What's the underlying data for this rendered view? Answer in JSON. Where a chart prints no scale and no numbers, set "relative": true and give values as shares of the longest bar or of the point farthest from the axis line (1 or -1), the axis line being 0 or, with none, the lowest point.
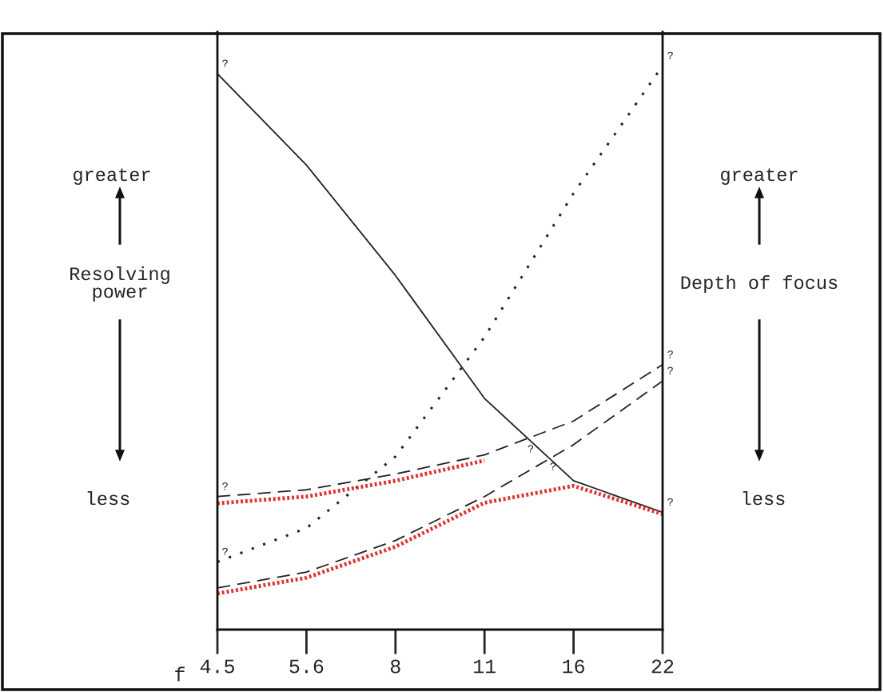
{
  "chart_data": {
    "type": "line",
    "relative": true,
    "xlabel": "f",
    "ylabel": "Resolving\npower",
    "y2label": "Depth of focus",
    "categories": [
      "4.5",
      "5.6",
      "8",
      "11",
      "16",
      "22"
    ],
    "grid": false,
    "series": [
      {
        "color": "#222222",
        "line_style": "solid",
        "values": [
          0.986,
          0.824,
          0.628,
          0.41,
          0.264,
          0.208
        ]
      },
      {
        "color": "#222222",
        "line_style": "dotted",
        "values": [
          0.12,
          0.18,
          0.307,
          0.519,
          0.774,
          1
        ]
      },
      {
        "color": "#222222",
        "line_style": "dashed",
        "values": [
          0.236,
          0.248,
          0.276,
          0.31,
          0.37,
          0.47
        ]
      },
      {
        "color": "#222222",
        "line_style": "dashed",
        "values": [
          0.074,
          0.102,
          0.158,
          0.236,
          0.328,
          0.441
        ]
      },
      {
        "color": "#e03030",
        "line_style": "dotted",
        "values": [
          0.224,
          0.236,
          0.264,
          0.3,
          null,
          null
        ]
      },
      {
        "color": "#e03030",
        "line_style": "dotted",
        "values": [
          0.064,
          0.092,
          0.147,
          0.225,
          0.255,
          0.205
        ]
      }
    ],
    "annotations": [
      "greater",
      "less",
      "greater",
      "less",
      "?",
      "?",
      {
        "text": "?",
        "x": "4.5",
        "y": 0.986
      },
      {
        "text": "?",
        "x": "22",
        "y": 1
      },
      {
        "text": "?",
        "x": "4.5",
        "y": 0.236
      },
      {
        "text": "?",
        "x": "4.5",
        "y": 0.12
      },
      {
        "text": "?",
        "x": "22",
        "y": 0.47
      },
      {
        "text": "?",
        "x": "22",
        "y": 0.441
      },
      {
        "text": "?",
        "x": "22",
        "y": 0.208
      }
    ]
  }
}
